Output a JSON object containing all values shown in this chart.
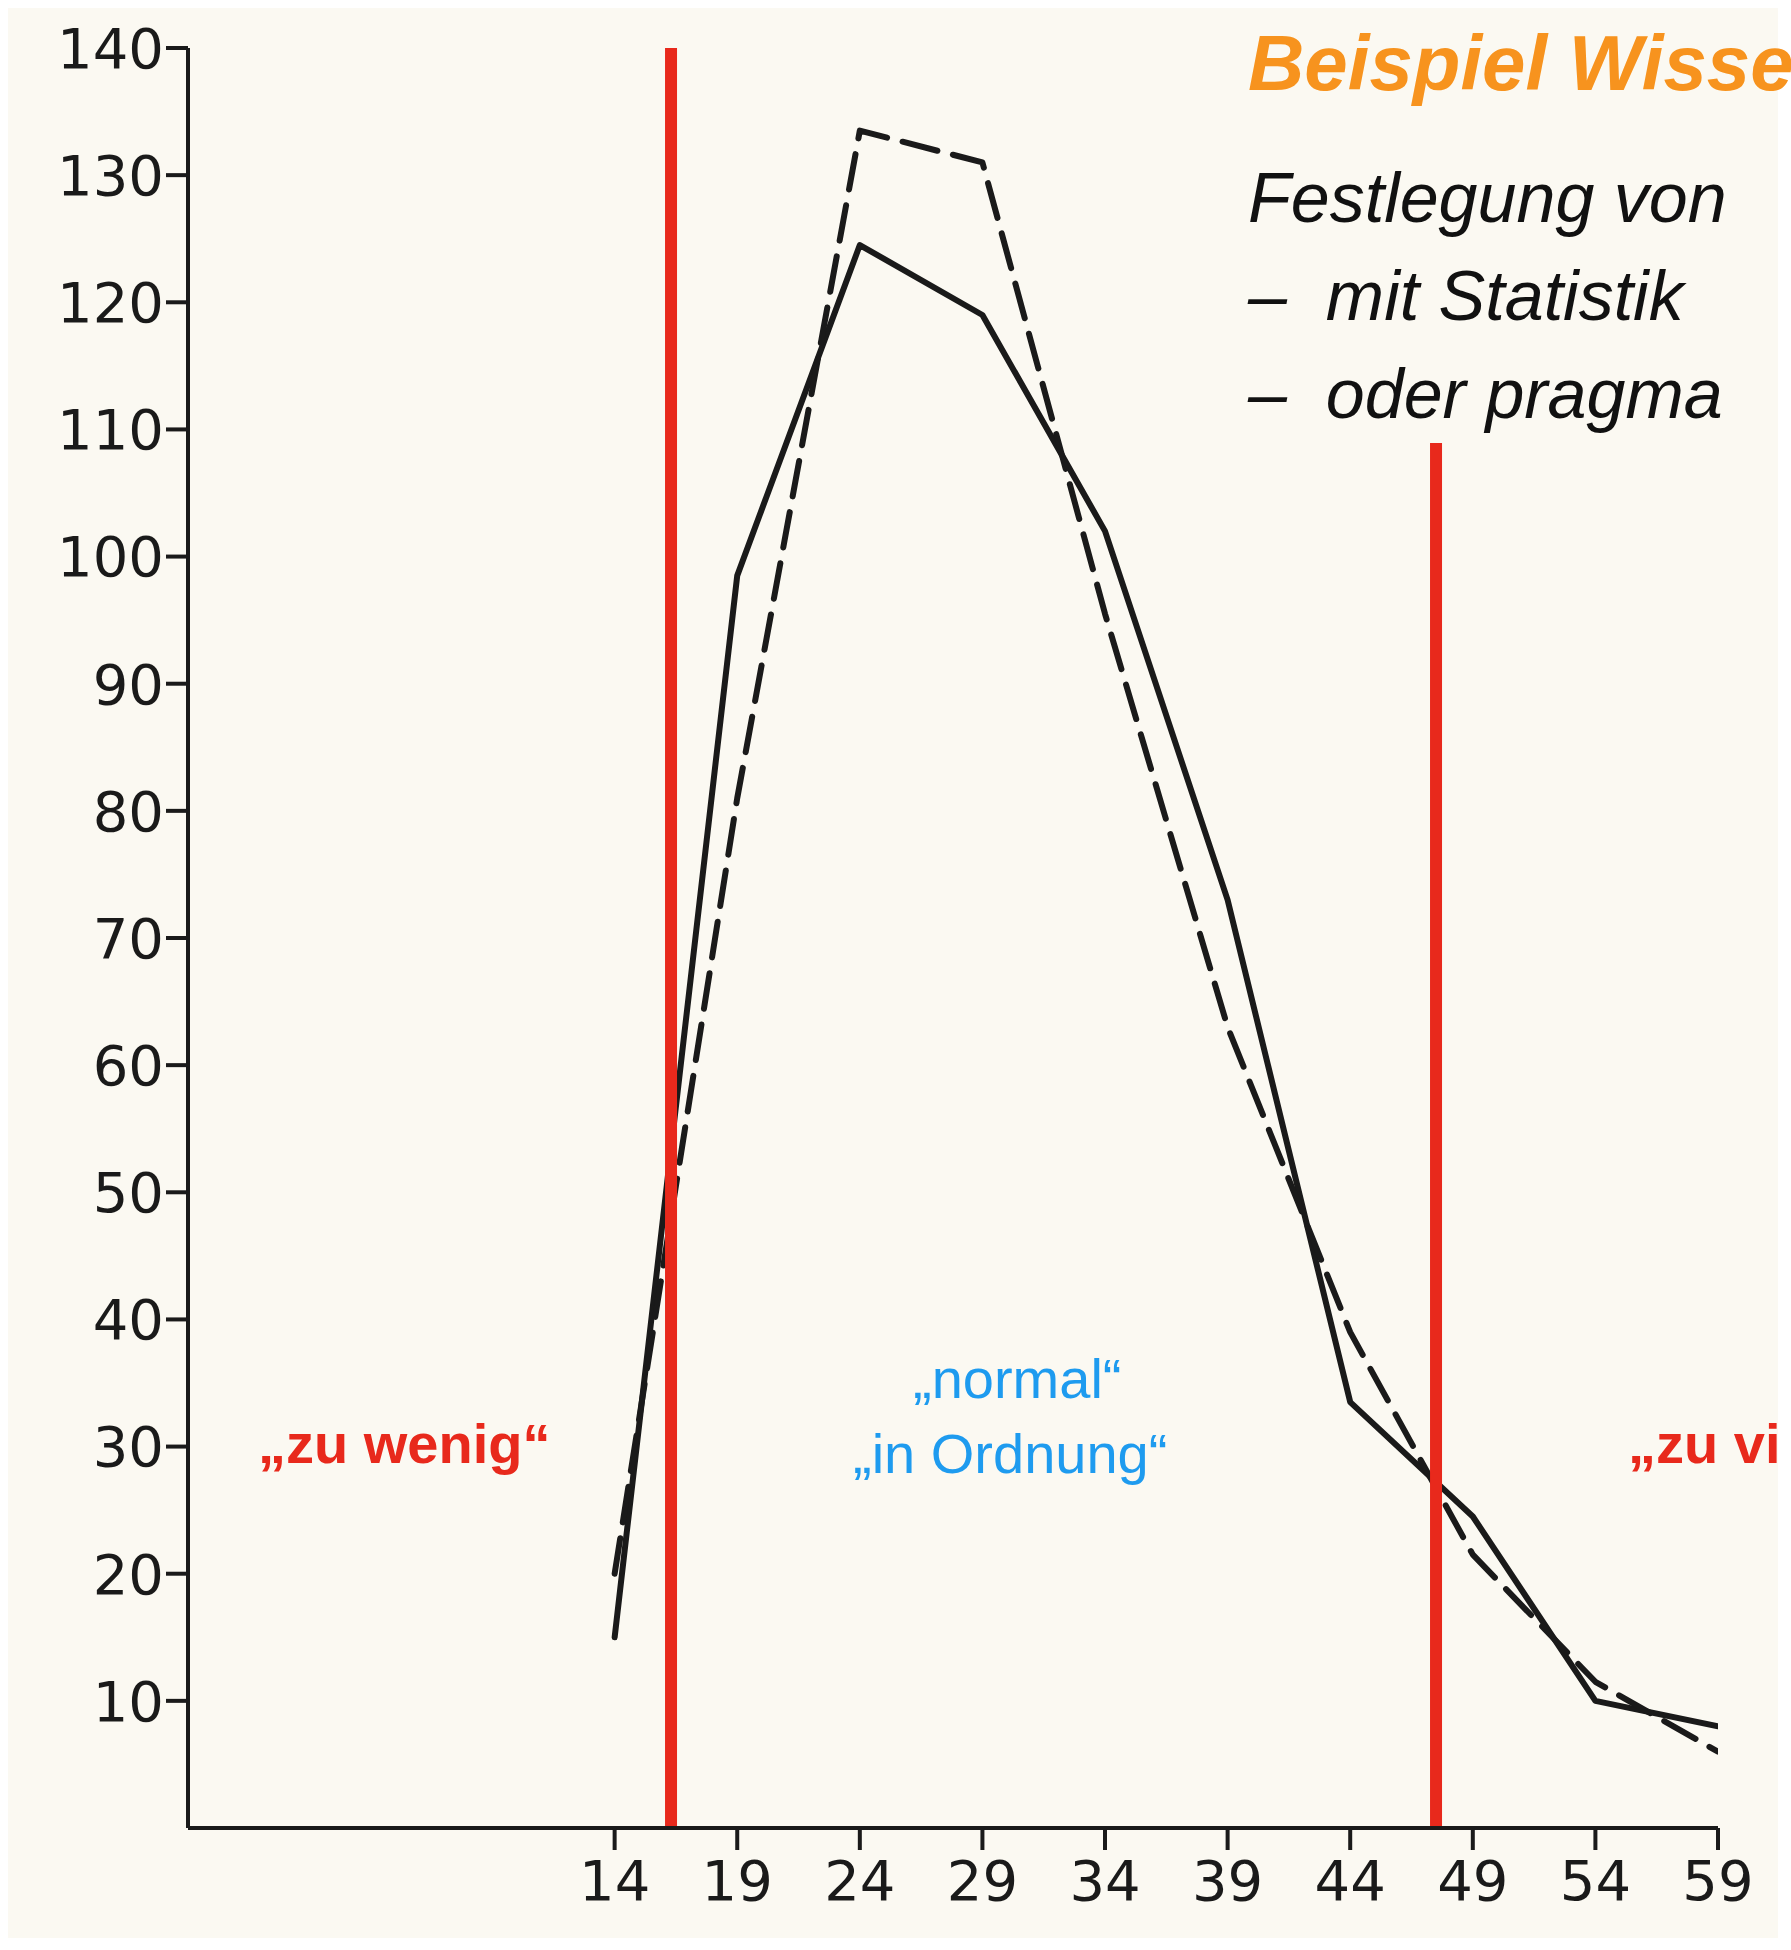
{
  "chart_data": {
    "type": "line",
    "title": "Beispiel Wisse",
    "x": [
      14,
      19,
      24,
      29,
      34,
      39,
      44,
      49,
      54,
      59
    ],
    "series": [
      {
        "color": "#1a1a1a",
        "line_style": "solid",
        "values": [
          15,
          98.5,
          124.5,
          119,
          102,
          73,
          33.5,
          24.5,
          10,
          8
        ]
      },
      {
        "color": "#1a1a1a",
        "line_style": "dashed",
        "values": [
          20,
          81,
          133.5,
          131,
          95.5,
          63,
          39,
          21.5,
          11.5,
          6
        ]
      }
    ],
    "xlim": [
      -3.4,
      59
    ],
    "xticks": [
      14,
      19,
      24,
      29,
      34,
      39,
      44,
      49,
      54,
      59
    ],
    "ylim": [
      0,
      140
    ],
    "yticks": [
      10,
      20,
      30,
      40,
      50,
      60,
      70,
      80,
      90,
      100,
      110,
      120,
      130,
      140
    ],
    "ref_lines": [
      {
        "axis": "x",
        "value": 16.3,
        "color": "#e8291c"
      },
      {
        "axis": "x",
        "value": 47.5,
        "color": "#e8291c"
      }
    ],
    "annotations": [
      "Festlegung von",
      "–  mit Statistik",
      "–  oder pragma",
      "„zu wenig“",
      "„normal“",
      "„in Ordnung“",
      "„zu vi"
    ],
    "grid": false,
    "legend": false,
    "marker": "none"
  }
}
